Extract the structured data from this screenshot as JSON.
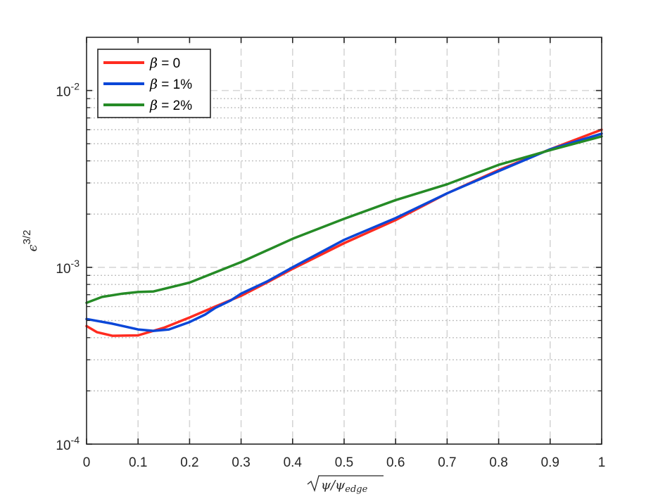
{
  "chart_data": {
    "type": "line",
    "xlabel": "√ψ/ψedge",
    "ylabel": "ϵ3/2",
    "xlim": [
      0,
      1
    ],
    "ylim": [
      0.0001,
      0.02
    ],
    "yscale": "log",
    "grid": true,
    "legend_position": "top-left",
    "x_ticks": [
      0,
      0.1,
      0.2,
      0.3,
      0.4,
      0.5,
      0.6,
      0.7,
      0.8,
      0.9,
      1
    ],
    "x_tick_labels": [
      "0",
      "0.1",
      "0.2",
      "0.3",
      "0.4",
      "0.5",
      "0.6",
      "0.7",
      "0.8",
      "0.9",
      "1"
    ],
    "y_ticks": [
      0.0001,
      0.001,
      0.01
    ],
    "y_tick_labels": [
      {
        "base": "10",
        "exp": "-4"
      },
      {
        "base": "10",
        "exp": "-3"
      },
      {
        "base": "10",
        "exp": "-2"
      }
    ],
    "series": [
      {
        "name": "β = 0",
        "legend_symbol": "β",
        "legend_text": " = 0",
        "color": "#ff2b20",
        "x": [
          0,
          0.02,
          0.05,
          0.1,
          0.15,
          0.2,
          0.25,
          0.3,
          0.35,
          0.4,
          0.5,
          0.6,
          0.7,
          0.8,
          0.9,
          1.0
        ],
        "y": [
          0.000465,
          0.00043,
          0.00041,
          0.000412,
          0.000455,
          0.00052,
          0.0006,
          0.00069,
          0.00082,
          0.00098,
          0.00137,
          0.00185,
          0.00262,
          0.00355,
          0.00465,
          0.006
        ]
      },
      {
        "name": "β = 1%",
        "legend_symbol": "β",
        "legend_text": " = 1%",
        "color": "#0b47d8",
        "x": [
          0,
          0.05,
          0.1,
          0.13,
          0.16,
          0.2,
          0.23,
          0.25,
          0.28,
          0.3,
          0.35,
          0.4,
          0.5,
          0.6,
          0.7,
          0.8,
          0.9,
          1.0
        ],
        "y": [
          0.00051,
          0.00048,
          0.000445,
          0.000437,
          0.000445,
          0.00049,
          0.00054,
          0.00059,
          0.00065,
          0.00071,
          0.00083,
          0.001,
          0.00143,
          0.0019,
          0.00262,
          0.0035,
          0.00465,
          0.0057
        ]
      },
      {
        "name": "β = 2%",
        "legend_symbol": "β",
        "legend_text": " = 2%",
        "color": "#258b26",
        "x": [
          0,
          0.03,
          0.07,
          0.1,
          0.13,
          0.2,
          0.3,
          0.4,
          0.5,
          0.6,
          0.7,
          0.8,
          0.9,
          1.0
        ],
        "y": [
          0.00063,
          0.00068,
          0.00071,
          0.000725,
          0.00073,
          0.00082,
          0.00107,
          0.00145,
          0.00188,
          0.0024,
          0.00295,
          0.0038,
          0.0046,
          0.0055
        ]
      }
    ]
  }
}
